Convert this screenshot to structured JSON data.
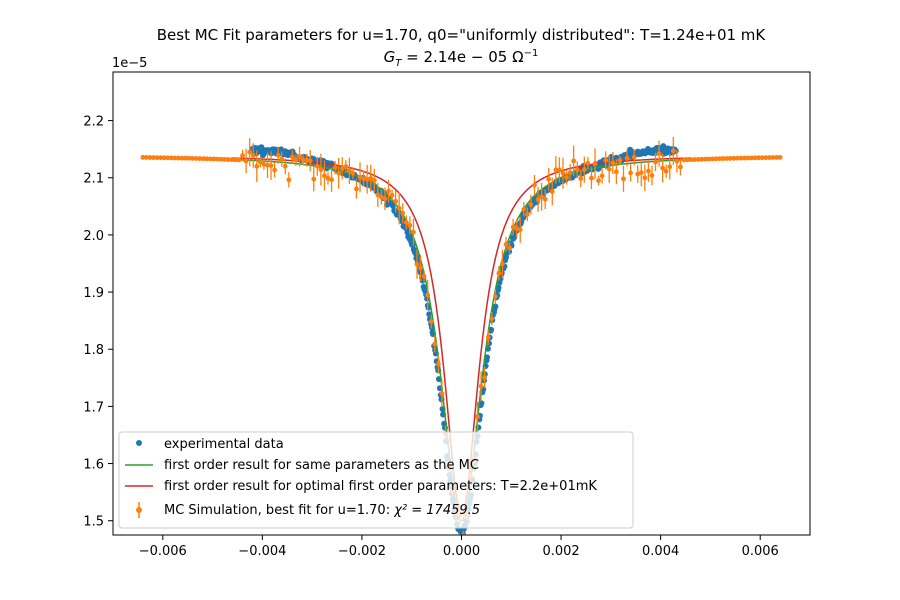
{
  "chart_data": {
    "type": "scatter",
    "title": "Best MC Fit parameters for u=1.70, q0=\"uniformly distributed\":  T=1.24e+01 mK",
    "subtitle_prefix": "G",
    "subtitle_sub": "T",
    "subtitle_rest": " = 2.14e − 05 Ω",
    "subtitle_sup": "−1",
    "xlabel": "",
    "ylabel": "",
    "y_offset_label": "1e−5",
    "xlim": [
      -0.007,
      0.007
    ],
    "ylim": [
      1.475,
      2.285
    ],
    "x_ticks": [
      -0.006,
      -0.004,
      -0.002,
      0.0,
      0.002,
      0.004,
      0.006
    ],
    "x_tick_labels": [
      "−0.006",
      "−0.004",
      "−0.002",
      "0.000",
      "0.002",
      "0.004",
      "0.006"
    ],
    "y_ticks": [
      1.5,
      1.6,
      1.7,
      1.8,
      1.9,
      2.0,
      2.1,
      2.2
    ],
    "y_tick_labels": [
      "1.5",
      "1.6",
      "1.7",
      "1.8",
      "1.9",
      "2.0",
      "2.1",
      "2.2"
    ],
    "grid": false,
    "legend_position": "lower-left",
    "model": {
      "baseline": 2.14,
      "dip_depth_mc": 0.66,
      "dip_width_mc": 0.00055,
      "dip_depth_first_order": 0.64,
      "dip_width_first_order": 0.00052,
      "first_order_optimal_width": 0.00048,
      "first_order_optimal_depth": 0.63
    },
    "series": [
      {
        "name": "experimental data",
        "type": "scatter",
        "color": "#1f77b4",
        "x_range": [
          -0.0042,
          0.0043
        ],
        "count": 520
      },
      {
        "name": "first order result for same parameters as the MC",
        "type": "line",
        "color": "#2ca02c"
      },
      {
        "name": "first order result for optimal first order parameters: T=2.2e+01mK",
        "type": "line",
        "color": "#d62728"
      },
      {
        "name_prefix": "MC Simulation, best fit for u=1.70:  ",
        "name_math": "χ² = 17459.5",
        "type": "errorbar",
        "color": "#ff7f0e",
        "x_range": [
          -0.0064,
          0.0064
        ],
        "count": 180
      }
    ]
  }
}
